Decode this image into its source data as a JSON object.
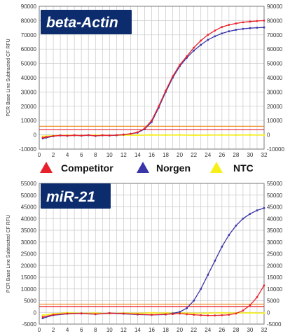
{
  "legend": [
    {
      "label": "Competitor",
      "color": "#e8202a"
    },
    {
      "label": "Norgen",
      "color": "#3a35a8"
    },
    {
      "label": "NTC",
      "color": "#f7ef1a"
    }
  ],
  "chart_data": [
    {
      "type": "line",
      "title": "beta-Actin",
      "ylabel": "PCR Base Line Subtracted CF RFU",
      "xlim": [
        0,
        32
      ],
      "ylim": [
        -10000,
        90000
      ],
      "x_ticks": [
        "0",
        "2",
        "4",
        "6",
        "8",
        "10",
        "12",
        "14",
        "16",
        "18",
        "20",
        "22",
        "24",
        "26",
        "28",
        "30",
        "32"
      ],
      "y_ticks": [
        "-10000",
        "0",
        "10000",
        "20000",
        "30000",
        "40000",
        "50000",
        "60000",
        "70000",
        "80000",
        "90000"
      ],
      "threshold_lines": [
        {
          "color": "#f08a24",
          "y": 6000
        },
        {
          "color": "#e8202a",
          "y": 3500
        }
      ],
      "grid": true,
      "series": [
        {
          "name": "Competitor",
          "color": "#e8202a",
          "x": [
            0.5,
            1,
            2,
            3,
            4,
            5,
            6,
            7,
            8,
            9,
            10,
            11,
            12,
            13,
            14,
            15,
            16,
            17,
            18,
            19,
            20,
            21,
            22,
            23,
            24,
            25,
            26,
            27,
            28,
            29,
            30,
            31,
            32
          ],
          "y": [
            -2000,
            -1500,
            -800,
            -400,
            -600,
            -300,
            -500,
            -200,
            -700,
            -300,
            -400,
            -200,
            200,
            800,
            1800,
            4500,
            10000,
            20000,
            31000,
            41000,
            49000,
            55000,
            61000,
            66000,
            70000,
            73000,
            75500,
            77000,
            78000,
            78800,
            79300,
            79700,
            80000
          ]
        },
        {
          "name": "Norgen",
          "color": "#3a35a8",
          "x": [
            0.5,
            1,
            2,
            3,
            4,
            5,
            6,
            7,
            8,
            9,
            10,
            11,
            12,
            13,
            14,
            15,
            16,
            17,
            18,
            19,
            20,
            21,
            22,
            23,
            24,
            25,
            26,
            27,
            28,
            29,
            30,
            31,
            32
          ],
          "y": [
            -2500,
            -2000,
            -1000,
            -500,
            -700,
            -400,
            -600,
            -300,
            -800,
            -400,
            -500,
            -300,
            100,
            700,
            1500,
            4000,
            9000,
            19000,
            30000,
            40000,
            48000,
            54000,
            59000,
            63000,
            66500,
            69000,
            71000,
            72500,
            73500,
            74200,
            74700,
            75000,
            75200
          ]
        },
        {
          "name": "NTC",
          "color": "#f7ef1a",
          "x": [
            0.5,
            2,
            4,
            6,
            8,
            10,
            12,
            14,
            16,
            18,
            20,
            22,
            24,
            26,
            28,
            30,
            32
          ],
          "y": [
            -1000,
            -600,
            -300,
            -500,
            -200,
            -400,
            -200,
            -300,
            -100,
            -200,
            -100,
            -300,
            -200,
            -100,
            -200,
            -100,
            -200
          ]
        }
      ]
    },
    {
      "type": "line",
      "title": "miR-21",
      "ylabel": "PCR Base Line Subtracted CF RFU",
      "xlim": [
        0,
        32
      ],
      "ylim": [
        -5000,
        55000
      ],
      "x_ticks": [
        "0",
        "2",
        "4",
        "6",
        "8",
        "10",
        "12",
        "14",
        "16",
        "18",
        "20",
        "22",
        "24",
        "26",
        "28",
        "30",
        "32"
      ],
      "y_ticks": [
        "-5000",
        "0",
        "5000",
        "10000",
        "15000",
        "20000",
        "25000",
        "30000",
        "35000",
        "40000",
        "45000",
        "50000",
        "55000"
      ],
      "threshold_lines": [
        {
          "color": "#f08a24",
          "y": 3500
        },
        {
          "color": "#e8202a",
          "y": 2500
        }
      ],
      "grid": true,
      "series": [
        {
          "name": "Competitor",
          "color": "#e8202a",
          "x": [
            0.5,
            2,
            4,
            6,
            8,
            10,
            12,
            14,
            16,
            18,
            19,
            20,
            21,
            22,
            23,
            24,
            25,
            26,
            27,
            28,
            29,
            30,
            31,
            32
          ],
          "y": [
            -2000,
            -1000,
            -500,
            -400,
            -700,
            -300,
            -500,
            -800,
            -1000,
            -800,
            -700,
            -500,
            -800,
            -1000,
            -1200,
            -1300,
            -1300,
            -1200,
            -1000,
            -500,
            800,
            3000,
            6500,
            11500
          ]
        },
        {
          "name": "Norgen",
          "color": "#3a35a8",
          "x": [
            0.5,
            2,
            4,
            6,
            8,
            10,
            12,
            14,
            16,
            18,
            19,
            20,
            21,
            22,
            23,
            24,
            25,
            26,
            27,
            28,
            29,
            30,
            31,
            32
          ],
          "y": [
            -2500,
            -1200,
            -600,
            -500,
            -800,
            -400,
            -600,
            -900,
            -1100,
            -900,
            -400,
            200,
            1800,
            5000,
            10000,
            16000,
            22000,
            28000,
            33000,
            37000,
            40000,
            42000,
            43500,
            44500
          ]
        },
        {
          "name": "NTC",
          "color": "#f7ef1a",
          "x": [
            0.5,
            2,
            4,
            6,
            8,
            10,
            12,
            14,
            16,
            18,
            20,
            22,
            24,
            26,
            28,
            30,
            32
          ],
          "y": [
            -1200,
            -600,
            -200,
            -400,
            -300,
            -500,
            -300,
            -400,
            -200,
            -300,
            -200,
            -400,
            -300,
            -200,
            -300,
            -200,
            -300
          ]
        }
      ]
    }
  ]
}
